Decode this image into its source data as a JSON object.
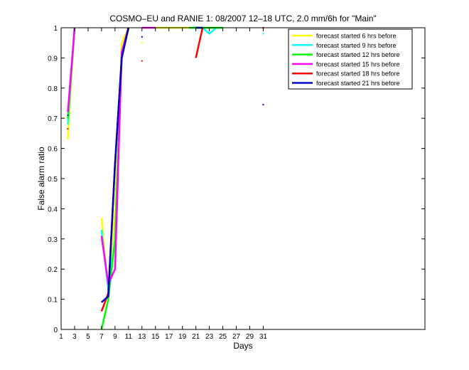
{
  "chart_data": {
    "type": "line",
    "title": "COSMO–EU and RANIE 1: 08/2007 12–18 UTC, 2.0 mm/6h for \"Main\"",
    "xlabel": "Days",
    "ylabel": "False alarm ratio",
    "xlim": [
      1,
      55
    ],
    "ylim": [
      0,
      1
    ],
    "x_ticks": [
      1,
      3,
      5,
      7,
      9,
      11,
      13,
      15,
      17,
      19,
      21,
      23,
      25,
      27,
      29,
      31
    ],
    "y_ticks": [
      0,
      0.1,
      0.2,
      0.3,
      0.4,
      0.5,
      0.6,
      0.7,
      0.8,
      0.9,
      1
    ],
    "x_tick_labels": [
      "1",
      "3",
      "5",
      "7",
      "9",
      "11",
      "13",
      "15",
      "17",
      "19",
      "21",
      "23",
      "25",
      "27",
      "29",
      "31"
    ],
    "y_tick_labels": [
      "0",
      "0.1",
      "0.2",
      "0.3",
      "0.4",
      "0.5",
      "0.6",
      "0.7",
      "0.8",
      "0.9",
      "1"
    ],
    "grid": false,
    "legend_position": "top-right",
    "series": [
      {
        "name": "forecast started 6 hrs before",
        "color": "#ffff00",
        "segments": [
          [
            [
              2,
              0.63
            ],
            [
              3,
              1.0
            ]
          ],
          [
            [
              7,
              0.37
            ],
            [
              8,
              0.13
            ],
            [
              9,
              0.4
            ],
            [
              10,
              0.95
            ],
            [
              11,
              1.0
            ]
          ],
          [
            [
              13,
              1.0
            ],
            [
              21,
              1.0
            ]
          ],
          [
            [
              21,
              1.0
            ],
            [
              25,
              1.0
            ]
          ]
        ],
        "points": [
          [
            13,
            0.95
          ],
          [
            17,
            1.0
          ]
        ]
      },
      {
        "name": "forecast started 9 hrs before",
        "color": "#00ffff",
        "segments": [
          [
            [
              2,
              0.68
            ],
            [
              3,
              1.0
            ]
          ],
          [
            [
              7,
              0.33
            ],
            [
              8,
              0.13
            ],
            [
              9,
              0.3
            ],
            [
              10,
              0.92
            ],
            [
              11,
              1.0
            ]
          ],
          [
            [
              20,
              1.0
            ],
            [
              22,
              1.0
            ],
            [
              23,
              0.98
            ],
            [
              24,
              1.0
            ],
            [
              25,
              1.0
            ]
          ]
        ],
        "points": [
          [
            31,
            0.98
          ]
        ]
      },
      {
        "name": "forecast started 12 hrs before",
        "color": "#00ff00",
        "segments": [
          [
            [
              2,
              0.7
            ],
            [
              3,
              1.0
            ]
          ],
          [
            [
              7,
              0.0
            ],
            [
              8,
              0.1
            ],
            [
              9,
              0.3
            ],
            [
              10,
              0.9
            ],
            [
              11,
              1.0
            ]
          ],
          [
            [
              20,
              1.0
            ],
            [
              25,
              1.0
            ]
          ]
        ],
        "points": []
      },
      {
        "name": "forecast started 15 hrs before",
        "color": "#ff00ff",
        "segments": [
          [
            [
              2,
              0.72
            ],
            [
              3,
              1.0
            ]
          ],
          [
            [
              7,
              0.31
            ],
            [
              8,
              0.15
            ],
            [
              9,
              0.2
            ],
            [
              10,
              0.92
            ],
            [
              11,
              1.0
            ]
          ],
          [
            [
              13,
              1.0
            ],
            [
              15,
              1.0
            ]
          ]
        ],
        "points": []
      },
      {
        "name": "forecast started 18 hrs before",
        "color": "#ff0000",
        "segments": [
          [
            [
              7,
              0.06
            ],
            [
              8,
              0.12
            ],
            [
              9,
              0.55
            ],
            [
              10,
              0.9
            ],
            [
              11,
              1.0
            ]
          ],
          [
            [
              21,
              0.9
            ],
            [
              22,
              1.0
            ]
          ]
        ],
        "points": [
          [
            2,
            0.665
          ],
          [
            13,
            0.89
          ],
          [
            31,
            1.0
          ]
        ]
      },
      {
        "name": "forecast started 21 hrs before",
        "color": "#0000cc",
        "segments": [
          [
            [
              7,
              0.09
            ],
            [
              8,
              0.11
            ],
            [
              9,
              0.55
            ],
            [
              10,
              0.9
            ],
            [
              11,
              1.0
            ]
          ],
          [
            [
              21,
              1.0
            ],
            [
              22,
              1.0
            ]
          ]
        ],
        "points": [
          [
            2,
            0.71
          ],
          [
            13,
            0.97
          ],
          [
            31,
            0.745
          ]
        ]
      }
    ]
  }
}
